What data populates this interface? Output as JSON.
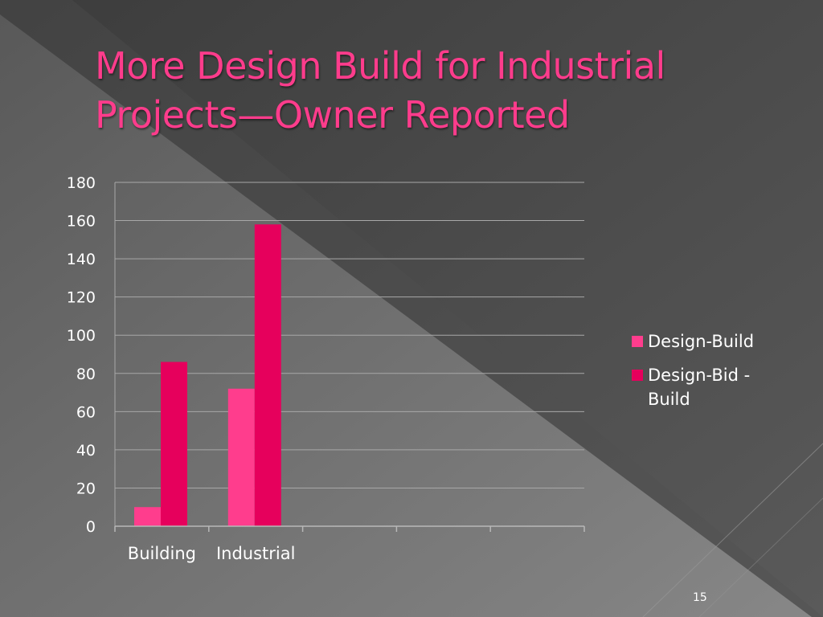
{
  "slide": {
    "title": "More Design Build for Industrial Projects—Owner Reported",
    "number": "15"
  },
  "colors": {
    "title": "#ff3c8c",
    "background_dark": "#3a3a3a",
    "background_light": "#7a7a7a"
  },
  "chart_data": {
    "type": "bar",
    "categories": [
      "Building",
      "Industrial",
      "",
      "",
      ""
    ],
    "series": [
      {
        "name": "Design-Build",
        "values": [
          10,
          72,
          null,
          null,
          null
        ],
        "color": "#ff3d8d"
      },
      {
        "name": "Design-Bid -Build",
        "values": [
          86,
          158,
          null,
          null,
          null
        ],
        "color": "#e6005c"
      }
    ],
    "y_ticks": [
      "0",
      "20",
      "40",
      "60",
      "80",
      "100",
      "120",
      "140",
      "160",
      "180"
    ],
    "ylim": [
      0,
      180
    ],
    "grid": true,
    "legend_position": "right",
    "title": "",
    "xlabel": "",
    "ylabel": ""
  }
}
